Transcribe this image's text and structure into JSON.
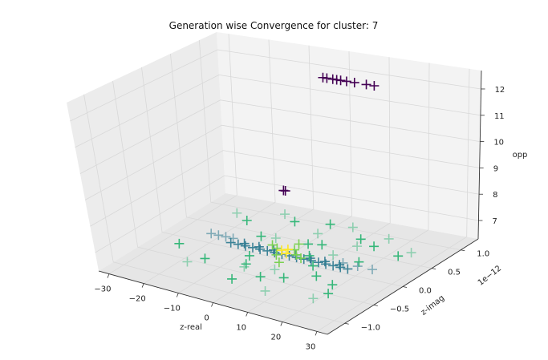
{
  "chart_data": {
    "type": "scatter",
    "projection": "3d",
    "title": "Generation wise Convergence for cluster: 7",
    "xlabel": "z-real",
    "ylabel": "z-imag",
    "zlabel": "opp",
    "y_offset_label": "1e−12",
    "xlim": [
      -33,
      33
    ],
    "ylim": [
      -1.3,
      1.3
    ],
    "zlim": [
      6.3,
      12.7
    ],
    "x_ticks": [
      -30,
      -20,
      -10,
      0,
      10,
      20,
      30
    ],
    "x_tick_labels": [
      "−30",
      "−20",
      "−10",
      "0",
      "10",
      "20",
      "30"
    ],
    "y_ticks": [
      -1.0,
      -0.5,
      0.0,
      0.5,
      1.0
    ],
    "y_tick_labels": [
      "−1.0",
      "−0.5",
      "0.0",
      "0.5",
      "1.0"
    ],
    "z_ticks": [
      7,
      8,
      9,
      10,
      11,
      12
    ],
    "z_tick_labels": [
      "7",
      "8",
      "9",
      "10",
      "11",
      "12"
    ],
    "grid": true,
    "marker": "+",
    "colormap": "viridis",
    "colors": {
      "pane": "#f3f3f3",
      "grid": "#d8d8d8",
      "high_opp": "#440154",
      "mid": "#2a788e",
      "low": "#35b779",
      "center": "#fde725"
    },
    "clusters": [
      {
        "x": [
          -2,
          -1,
          0.5,
          1.5,
          2.5,
          4,
          6,
          9,
          11
        ],
        "y": [
          1.0,
          1.0,
          1.0,
          1.0,
          1.0,
          1.0,
          1.0,
          1.0,
          1.0
        ],
        "z": [
          12,
          12,
          12,
          12,
          12,
          12,
          12,
          12,
          12
        ],
        "color": "#440154",
        "alpha": 1.0
      },
      {
        "x": [
          2,
          2.5
        ],
        "y": [
          0.0,
          0.0
        ],
        "z": [
          9,
          9
        ],
        "color": "#440154",
        "alpha": 1.0
      },
      {
        "x": [
          -14,
          -12,
          -10,
          -8,
          -6,
          -4,
          -2,
          0,
          2,
          4,
          6,
          8,
          10,
          12,
          14,
          16,
          18,
          -11,
          -7,
          -3,
          3,
          7,
          11,
          15
        ],
        "y": [
          0.0,
          0.0,
          0.0,
          0.0,
          0.0,
          0.0,
          0.0,
          0.0,
          0.0,
          0.0,
          0.0,
          0.0,
          0.0,
          0.0,
          0.0,
          0.0,
          0.0,
          0.05,
          0.05,
          0.05,
          0.05,
          0.05,
          0.05,
          0.05
        ],
        "z": [
          6.5,
          6.5,
          6.5,
          6.5,
          6.5,
          6.5,
          6.5,
          6.5,
          6.5,
          6.5,
          6.5,
          6.5,
          6.5,
          6.5,
          6.5,
          6.5,
          6.5,
          6.5,
          6.5,
          6.5,
          6.5,
          6.5,
          6.5,
          6.5
        ],
        "color": "#2a788e",
        "alpha": 0.9
      },
      {
        "x": [
          -18,
          -16,
          -14,
          16,
          20,
          24,
          -20
        ],
        "y": [
          0.05,
          0.05,
          0.05,
          0.05,
          0.05,
          0.05,
          0.05
        ],
        "z": [
          6.6,
          6.6,
          6.6,
          6.6,
          6.6,
          6.6,
          6.6
        ],
        "color": "#2a788e",
        "alpha": 0.55
      },
      {
        "x": [
          -24,
          -18,
          -14,
          -8,
          -4,
          0,
          3,
          5,
          8,
          11,
          14,
          18,
          20,
          24,
          -10,
          -6,
          6,
          10,
          16,
          22,
          -2,
          2
        ],
        "y": [
          -0.3,
          0.6,
          -0.5,
          0.8,
          -0.4,
          0.9,
          -0.6,
          0.4,
          -0.5,
          0.7,
          -0.3,
          0.2,
          -0.4,
          0.5,
          0.3,
          -0.2,
          0.1,
          -0.1,
          0.6,
          -0.6,
          -0.8,
          0.35
        ],
        "z": [
          6.5,
          6.5,
          6.5,
          6.5,
          6.5,
          6.5,
          6.5,
          6.5,
          6.5,
          6.5,
          6.5,
          6.5,
          6.5,
          6.5,
          6.5,
          6.5,
          6.5,
          6.5,
          6.5,
          6.5,
          6.5,
          6.5
        ],
        "color": "#35b779",
        "alpha": 1.0
      },
      {
        "x": [
          -22,
          -16,
          -12,
          -6,
          1,
          6,
          9,
          13,
          17,
          21,
          26,
          -3,
          4,
          11
        ],
        "y": [
          0.7,
          -0.7,
          0.9,
          0.3,
          0.6,
          0.9,
          -0.9,
          0.5,
          0.8,
          -0.8,
          0.6,
          -0.5,
          -0.4,
          0.2
        ],
        "z": [
          6.55,
          6.55,
          6.55,
          6.55,
          6.55,
          6.55,
          6.55,
          6.55,
          6.55,
          6.55,
          6.55,
          6.55,
          6.55,
          6.55
        ],
        "color": "#35b779",
        "alpha": 0.5
      },
      {
        "x": [
          -2,
          0,
          2,
          4,
          -4,
          6,
          1,
          3
        ],
        "y": [
          0.05,
          -0.1,
          0.1,
          0.0,
          0.1,
          -0.05,
          0.25,
          -0.25
        ],
        "z": [
          6.6,
          6.6,
          6.6,
          6.6,
          6.6,
          6.6,
          6.6,
          6.6
        ],
        "color": "#7ad151",
        "alpha": 1.0
      },
      {
        "x": [
          0,
          1,
          2
        ],
        "y": [
          0.0,
          0.05,
          -0.05
        ],
        "z": [
          6.65,
          6.65,
          6.65
        ],
        "color": "#fde725",
        "alpha": 1.0
      }
    ]
  }
}
